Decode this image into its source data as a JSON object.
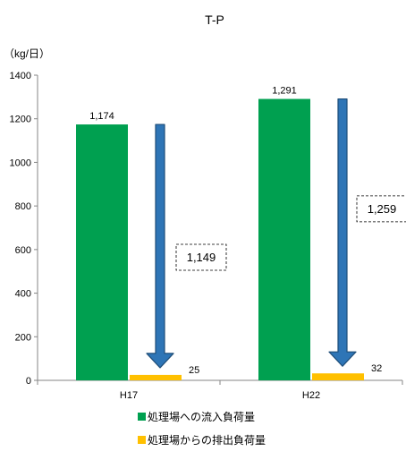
{
  "chart_data": {
    "type": "bar",
    "title": "T-P",
    "unit_label": "（kg/日）",
    "categories": [
      "H17",
      "H22"
    ],
    "series": [
      {
        "name": "処理場への流入負荷量",
        "values": [
          1174,
          1291
        ],
        "color": "#00A050"
      },
      {
        "name": "処理場からの排出負荷量",
        "values": [
          25,
          32
        ],
        "color": "#FFC000"
      }
    ],
    "value_labels": [
      [
        "1,174",
        "1,291"
      ],
      [
        "25",
        "32"
      ]
    ],
    "reductions": [
      {
        "label": "1,149",
        "from": 1174,
        "to": 25
      },
      {
        "label": "1,259",
        "from": 1291,
        "to": 32
      }
    ],
    "arrow_color": "#2E75B6",
    "ylim": [
      0,
      1400
    ],
    "yticks": [
      0,
      200,
      400,
      600,
      800,
      1000,
      1200,
      1400
    ],
    "grid": false,
    "legend_position": "bottom"
  }
}
